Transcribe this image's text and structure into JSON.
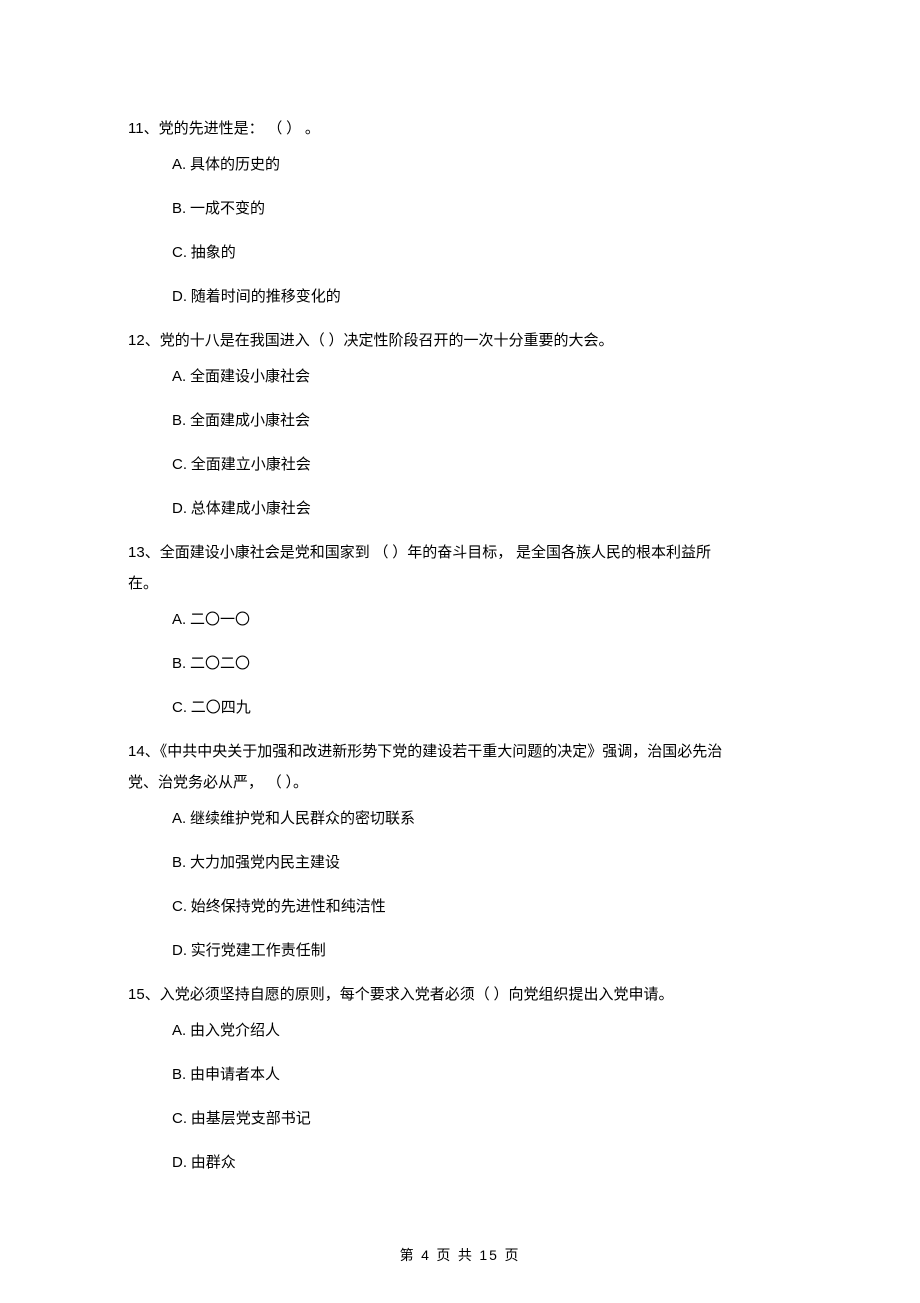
{
  "questions": [
    {
      "number": "11",
      "stem": "、党的先进性是：  （    ）     。",
      "options": [
        "具体的历史的",
        "一成不变的",
        "抽象的",
        "随着时间的推移变化的"
      ]
    },
    {
      "number": "12",
      "stem": "、党的十八是在我国进入（           ）决定性阶段召开的一次十分重要的大会。",
      "options": [
        "全面建设小康社会",
        "全面建成小康社会",
        "全面建立小康社会",
        "总体建成小康社会"
      ]
    },
    {
      "number": "13",
      "stem_line1": "、全面建设小康社会是党和国家到       （        ）年的奋斗目标，   是全国各族人民的根本利益所",
      "stem_line2": "在。",
      "options_raw": [
        "二〇一〇",
        "二〇二〇",
        "二〇四九"
      ]
    },
    {
      "number": "14",
      "stem_line1": "、《中共中央关于加强和改进新形势下党的建设若干重大问题的决定》强调，治国必先治",
      "stem_line2": "党、治党务必从严，  （      ）。",
      "options": [
        "继续维护党和人民群众的密切联系",
        "大力加强党内民主建设",
        "始终保持党的先进性和纯洁性",
        "实行党建工作责任制"
      ]
    },
    {
      "number": "15",
      "stem": "、入党必须坚持自愿的原则，每个要求入党者必须（                ）向党组织提出入党申请。",
      "options": [
        "由入党介绍人",
        "由申请者本人",
        "由基层党支部书记",
        "由群众"
      ]
    }
  ],
  "option_letters": [
    "A.",
    "B.",
    "C.",
    "D."
  ],
  "footer": {
    "prefix": "第",
    "current": "4",
    "mid": "页 共",
    "total": "15",
    "suffix": "页"
  }
}
